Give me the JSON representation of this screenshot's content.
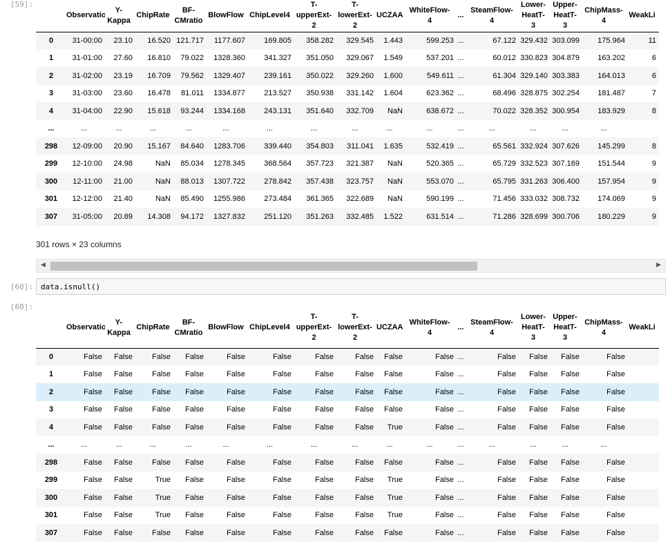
{
  "cells": [
    {
      "prompt": "[59]:",
      "shape": "301 rows × 23 columns",
      "columns": [
        "",
        "Observation",
        "Y-\nKappa",
        "ChipRate",
        "BF-\nCMratio",
        "BlowFlow",
        "ChipLevel4",
        "T-\nupperExt-\n2",
        "T-\nlowerExt-\n2",
        "UCZAA",
        "WhiteFlow-\n4",
        "...",
        "SteamFlow-\n4",
        "Lower-\nHeatT-\n3",
        "Upper-\nHeatT-\n3",
        "ChipMass-\n4",
        "WeakLi"
      ],
      "rows": [
        [
          "0",
          "31-00:00",
          "23.10",
          "16.520",
          "121.717",
          "1177.607",
          "169.805",
          "358.282",
          "329.545",
          "1.443",
          "599.253",
          "...",
          "67.122",
          "329.432",
          "303.099",
          "175.964",
          "11"
        ],
        [
          "1",
          "31-01:00",
          "27.60",
          "16.810",
          "79.022",
          "1328.360",
          "341.327",
          "351.050",
          "329.067",
          "1.549",
          "537.201",
          "...",
          "60.012",
          "330.823",
          "304.879",
          "163.202",
          "6"
        ],
        [
          "2",
          "31-02:00",
          "23.19",
          "16.709",
          "79.562",
          "1329.407",
          "239.161",
          "350.022",
          "329.260",
          "1.600",
          "549.611",
          "...",
          "61.304",
          "329.140",
          "303.383",
          "164.013",
          "6"
        ],
        [
          "3",
          "31-03:00",
          "23.60",
          "16.478",
          "81.011",
          "1334.877",
          "213.527",
          "350.938",
          "331.142",
          "1.604",
          "623.362",
          "...",
          "68.496",
          "328.875",
          "302.254",
          "181.487",
          "7"
        ],
        [
          "4",
          "31-04:00",
          "22.90",
          "15.618",
          "93.244",
          "1334.168",
          "243.131",
          "351.640",
          "332.709",
          "NaN",
          "638.672",
          "...",
          "70.022",
          "328.352",
          "300.954",
          "183.929",
          "8"
        ],
        [
          "...",
          "...",
          "...",
          "...",
          "...",
          "...",
          "...",
          "...",
          "...",
          "...",
          "...",
          "...",
          "...",
          "...",
          "...",
          "...",
          ""
        ],
        [
          "298",
          "12-09:00",
          "20.90",
          "15.167",
          "84.640",
          "1283.706",
          "339.440",
          "354.803",
          "311.041",
          "1.635",
          "532.419",
          "...",
          "65.561",
          "332.924",
          "307.626",
          "145.299",
          "8"
        ],
        [
          "299",
          "12-10:00",
          "24.98",
          "NaN",
          "85.034",
          "1278.345",
          "368.564",
          "357.723",
          "321.387",
          "NaN",
          "520.365",
          "...",
          "65.729",
          "332.523",
          "307.169",
          "151.544",
          "9"
        ],
        [
          "300",
          "12-11:00",
          "21.00",
          "NaN",
          "88.013",
          "1307.722",
          "278.842",
          "357.438",
          "323.757",
          "NaN",
          "553.070",
          "...",
          "65.795",
          "331.263",
          "306.400",
          "157.954",
          "9"
        ],
        [
          "301",
          "12-12:00",
          "21.40",
          "NaN",
          "85.490",
          "1255.986",
          "273.484",
          "361.365",
          "322.689",
          "NaN",
          "590.199",
          "...",
          "71.456",
          "333.032",
          "308.732",
          "174.069",
          "9"
        ],
        [
          "307",
          "31-05:00",
          "20.89",
          "14.308",
          "94.172",
          "1327.832",
          "251.120",
          "351.263",
          "332.485",
          "1.522",
          "631.514",
          "...",
          "71.286",
          "328.699",
          "300.706",
          "180.229",
          "9"
        ]
      ]
    },
    {
      "prompt": "[60]:",
      "code": "data.isnull()"
    },
    {
      "prompt": "[60]:",
      "columns": [
        "",
        "Observation",
        "Y-\nKappa",
        "ChipRate",
        "BF-\nCMratio",
        "BlowFlow",
        "ChipLevel4",
        "T-\nupperExt-\n2",
        "T-\nlowerExt-\n2",
        "UCZAA",
        "WhiteFlow-\n4",
        "...",
        "SteamFlow-\n4",
        "Lower-\nHeatT-\n3",
        "Upper-\nHeatT-\n3",
        "ChipMass-\n4",
        "WeakLi"
      ],
      "rows": [
        [
          "0",
          "False",
          "False",
          "False",
          "False",
          "False",
          "False",
          "False",
          "False",
          "False",
          "False",
          "...",
          "False",
          "False",
          "False",
          "False",
          ""
        ],
        [
          "1",
          "False",
          "False",
          "False",
          "False",
          "False",
          "False",
          "False",
          "False",
          "False",
          "False",
          "...",
          "False",
          "False",
          "False",
          "False",
          ""
        ],
        [
          "2",
          "False",
          "False",
          "False",
          "False",
          "False",
          "False",
          "False",
          "False",
          "False",
          "False",
          "...",
          "False",
          "False",
          "False",
          "False",
          ""
        ],
        [
          "3",
          "False",
          "False",
          "False",
          "False",
          "False",
          "False",
          "False",
          "False",
          "False",
          "False",
          "...",
          "False",
          "False",
          "False",
          "False",
          ""
        ],
        [
          "4",
          "False",
          "False",
          "False",
          "False",
          "False",
          "False",
          "False",
          "False",
          "True",
          "False",
          "...",
          "False",
          "False",
          "False",
          "False",
          ""
        ],
        [
          "...",
          "...",
          "...",
          "...",
          "...",
          "...",
          "...",
          "...",
          "...",
          "...",
          "...",
          "...",
          "...",
          "...",
          "...",
          "...",
          ""
        ],
        [
          "298",
          "False",
          "False",
          "False",
          "False",
          "False",
          "False",
          "False",
          "False",
          "False",
          "False",
          "...",
          "False",
          "False",
          "False",
          "False",
          ""
        ],
        [
          "299",
          "False",
          "False",
          "True",
          "False",
          "False",
          "False",
          "False",
          "False",
          "True",
          "False",
          "...",
          "False",
          "False",
          "False",
          "False",
          ""
        ],
        [
          "300",
          "False",
          "False",
          "True",
          "False",
          "False",
          "False",
          "False",
          "False",
          "True",
          "False",
          "...",
          "False",
          "False",
          "False",
          "False",
          ""
        ],
        [
          "301",
          "False",
          "False",
          "True",
          "False",
          "False",
          "False",
          "False",
          "False",
          "True",
          "False",
          "...",
          "False",
          "False",
          "False",
          "False",
          ""
        ],
        [
          "307",
          "False",
          "False",
          "False",
          "False",
          "False",
          "False",
          "False",
          "False",
          "False",
          "False",
          "...",
          "False",
          "False",
          "False",
          "False",
          ""
        ]
      ]
    }
  ],
  "scrollbar": {
    "left_arrow": "◀",
    "right_arrow": "▶"
  }
}
